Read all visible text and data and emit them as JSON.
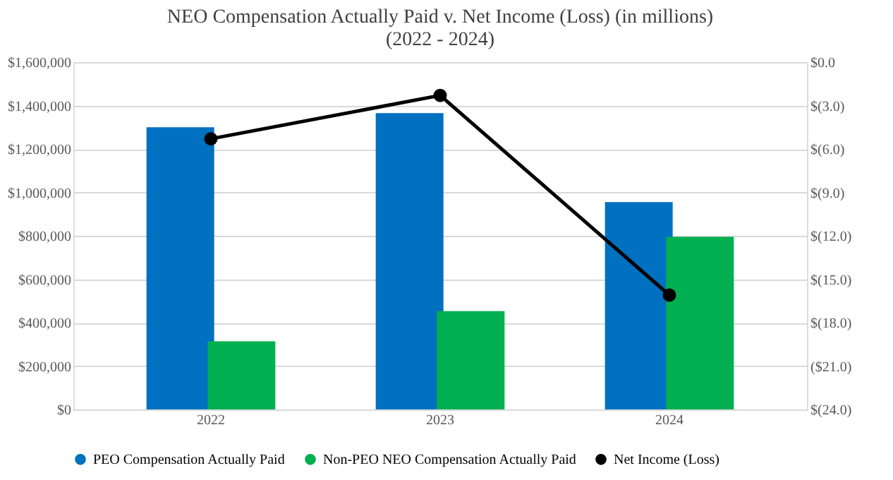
{
  "chart_data": {
    "type": "bar",
    "title": "NEO Compensation Actually Paid v. Net Income (Loss) (in millions)",
    "subtitle": "(2022 - 2024)",
    "categories": [
      "2022",
      "2023",
      "2024"
    ],
    "series": [
      {
        "name": "PEO Compensation Actually Paid",
        "color": "#0070c0",
        "values": [
          1300000,
          1365000,
          955000
        ]
      },
      {
        "name": "Non-PEO NEO Compensation Actually Paid",
        "color": "#00b050",
        "values": [
          314000,
          453000,
          795000
        ]
      },
      {
        "name": "Net Income (Loss)",
        "color": "#000000",
        "type": "line",
        "axis": "y2",
        "marker": "circle",
        "values": [
          -5.3,
          -2.3,
          -16.1
        ]
      }
    ],
    "ylim": [
      0,
      1600000
    ],
    "yticks": [
      {
        "value": 0,
        "label": "$0"
      },
      {
        "value": 200000,
        "label": "$200,000"
      },
      {
        "value": 400000,
        "label": "$400,000"
      },
      {
        "value": 600000,
        "label": "$600,000"
      },
      {
        "value": 800000,
        "label": "$800,000"
      },
      {
        "value": 1000000,
        "label": "$1,000,000"
      },
      {
        "value": 1200000,
        "label": "$1,200,000"
      },
      {
        "value": 1400000,
        "label": "$1,400,000"
      },
      {
        "value": 1600000,
        "label": "$1,600,000"
      }
    ],
    "y2lim": [
      -24,
      0
    ],
    "y2ticks": [
      {
        "value": 0,
        "label": "$0.0"
      },
      {
        "value": -3,
        "label": "$(3.0)"
      },
      {
        "value": -6,
        "label": "$(6.0)"
      },
      {
        "value": -9,
        "label": "$(9.0)"
      },
      {
        "value": -12,
        "label": "$(12.0)"
      },
      {
        "value": -15,
        "label": "$(15.0)"
      },
      {
        "value": -18,
        "label": "$(18.0)"
      },
      {
        "value": -21,
        "label": "($21.0)"
      },
      {
        "value": -24,
        "label": "$(24.0)"
      }
    ],
    "grid": "y",
    "legend": "bottom"
  }
}
